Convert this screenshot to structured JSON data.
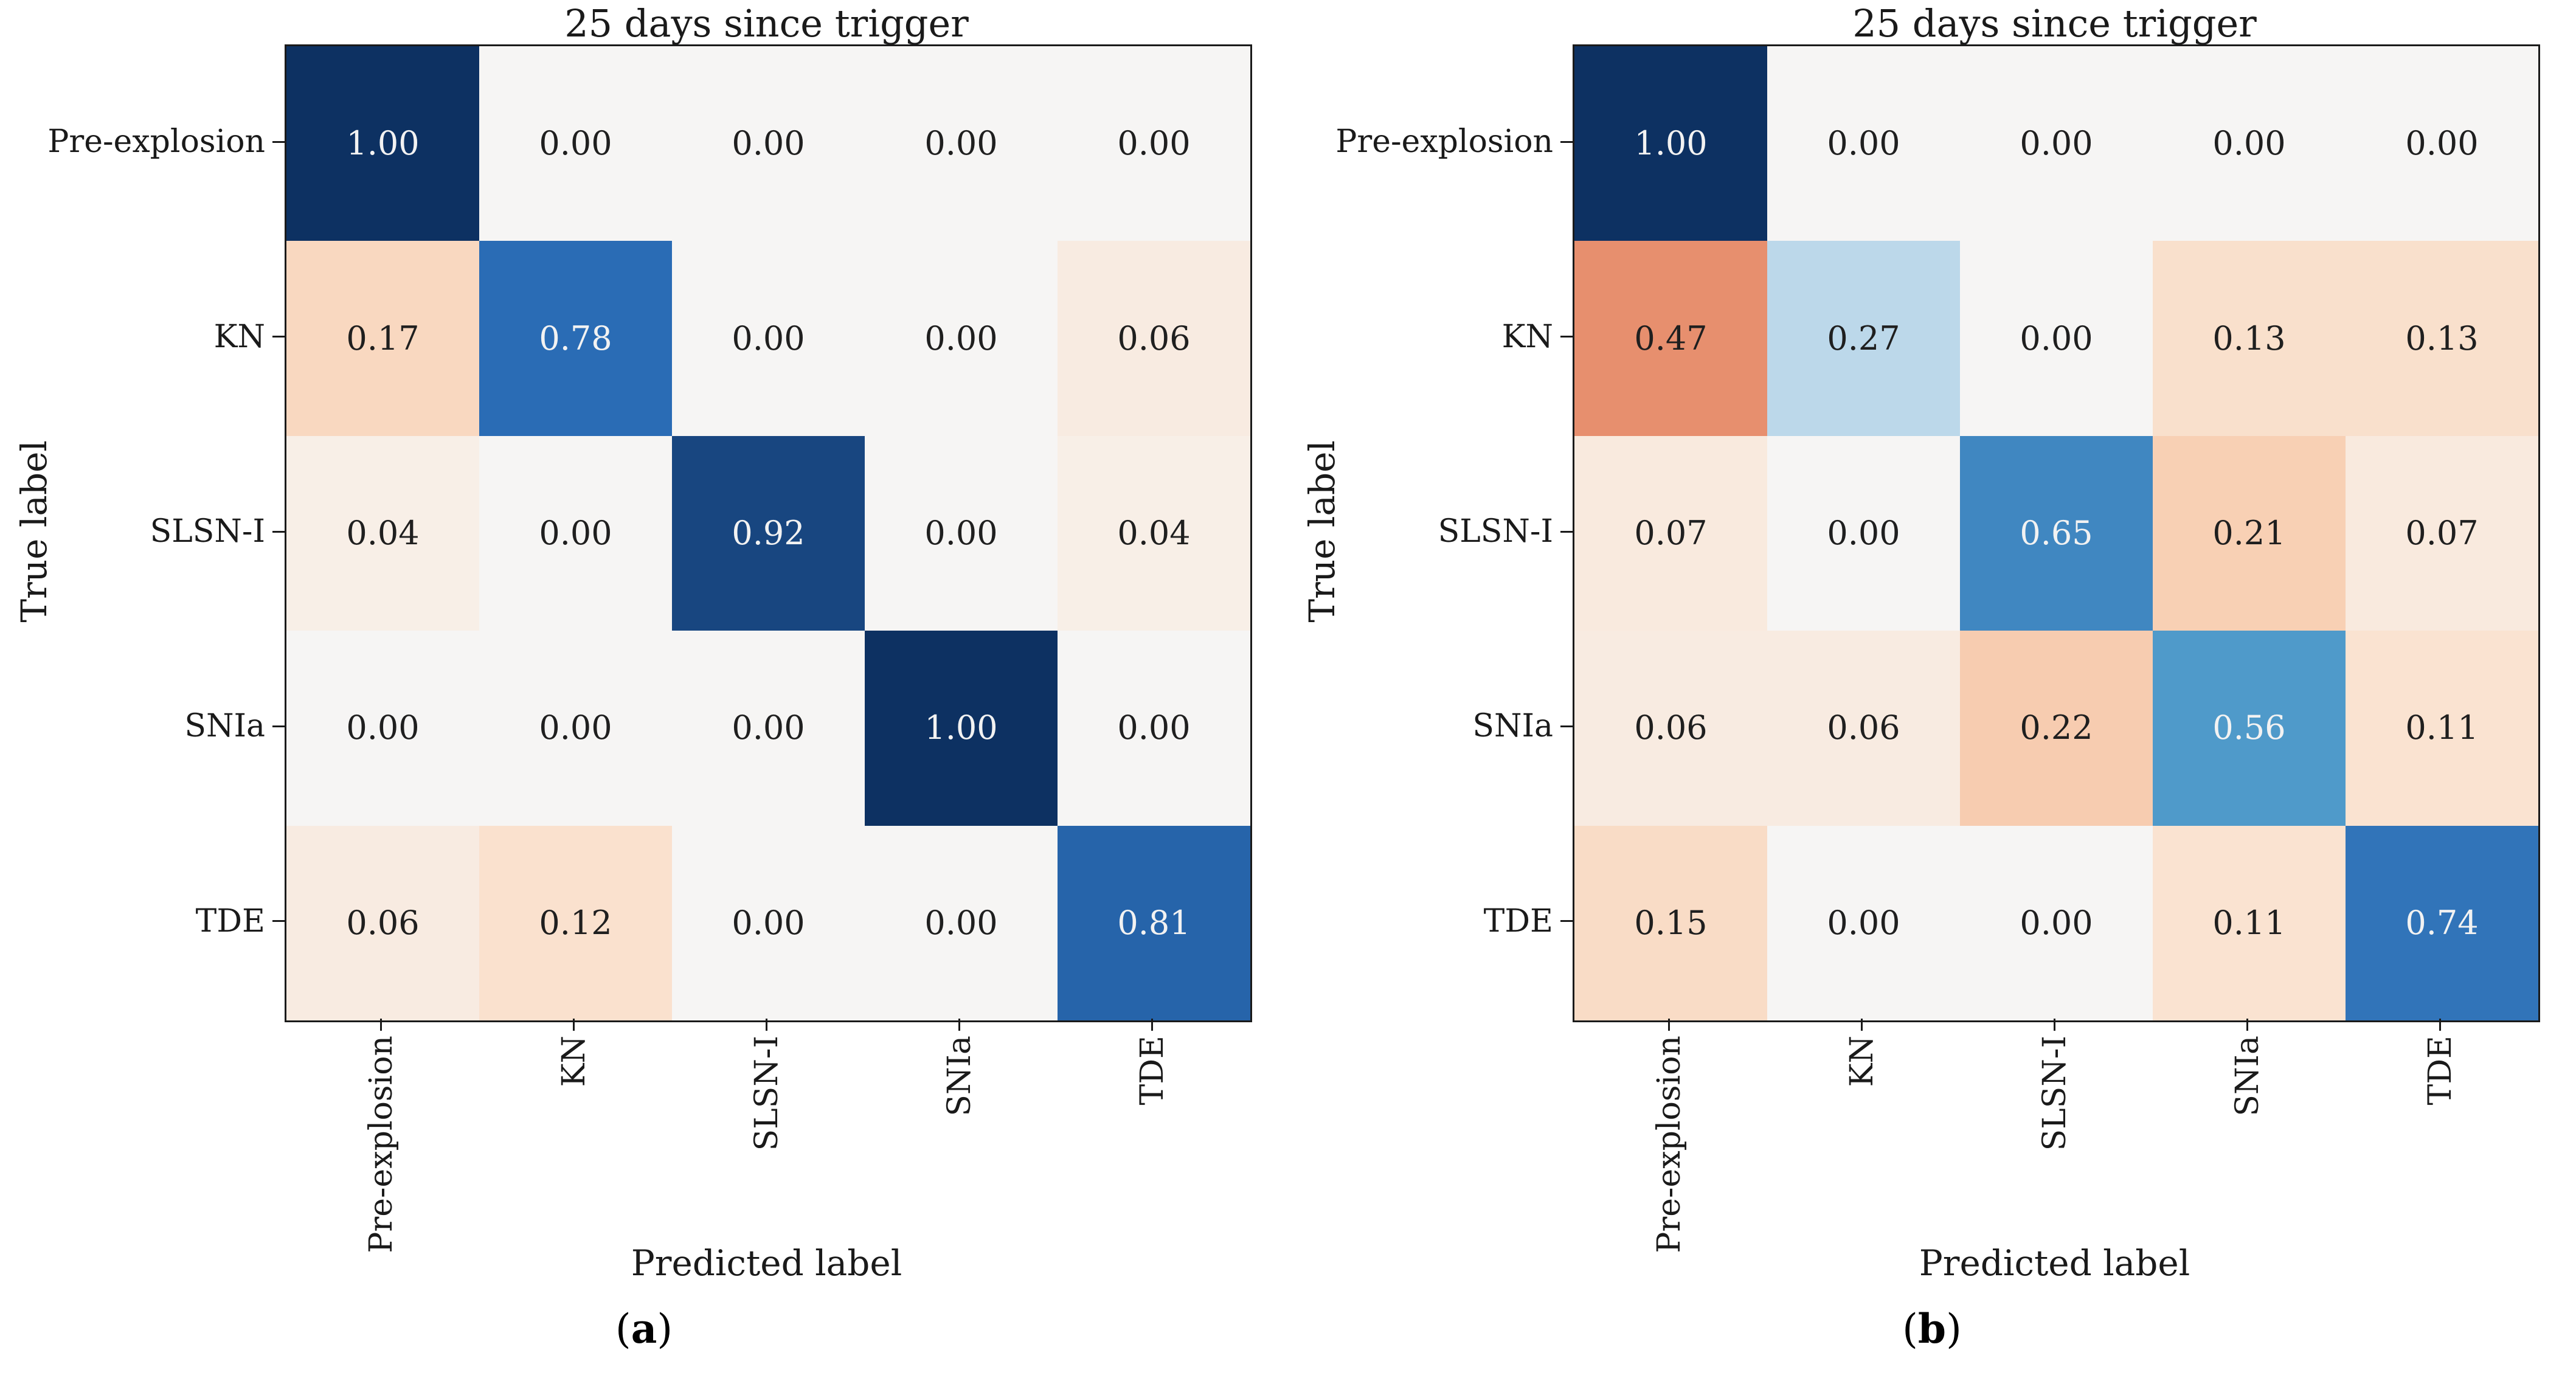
{
  "figure_title": "25 days since trigger",
  "style": {
    "axis_color": "#1a1a1a",
    "background": "#ffffff",
    "colormap": {
      "zero_color": "#f6f5f4",
      "diagonal_stops": [
        {
          "v": 0.0,
          "c": "#f6f5f4"
        },
        {
          "v": 0.27,
          "c": "#bcd8ea"
        },
        {
          "v": 0.56,
          "c": "#4f9aca"
        },
        {
          "v": 0.78,
          "c": "#2a6cb5"
        },
        {
          "v": 1.0,
          "c": "#0d3162"
        }
      ],
      "offdiagonal_stops": [
        {
          "v": 0.0,
          "c": "#f6f5f4"
        },
        {
          "v": 0.1,
          "c": "#fae5d4"
        },
        {
          "v": 0.2,
          "c": "#f8d3b8"
        },
        {
          "v": 0.3,
          "c": "#f4b290"
        },
        {
          "v": 0.5,
          "c": "#e58968"
        },
        {
          "v": 0.75,
          "c": "#ca503c"
        },
        {
          "v": 1.0,
          "c": "#67001f"
        }
      ],
      "light_text": "#f2f2f2",
      "dark_text": "#1f1f1f",
      "luminance_threshold": 0.6
    }
  },
  "chart_data": [
    {
      "type": "heatmap",
      "panel": "a",
      "caption_open": "(",
      "caption_letter": "a",
      "caption_close": ")",
      "title": "25 days since trigger",
      "xlabel": "Predicted label",
      "ylabel": "True label",
      "x_tick_labels": [
        "Pre-explosion",
        "KN",
        "SLSN-I",
        "SNIa",
        "TDE"
      ],
      "y_tick_labels": [
        "Pre-explosion",
        "KN",
        "SLSN-I",
        "SNIa",
        "TDE"
      ],
      "rows": [
        [
          1.0,
          0.0,
          0.0,
          0.0,
          0.0
        ],
        [
          0.17,
          0.78,
          0.0,
          0.0,
          0.06
        ],
        [
          0.04,
          0.0,
          0.92,
          0.0,
          0.04
        ],
        [
          0.0,
          0.0,
          0.0,
          1.0,
          0.0
        ],
        [
          0.06,
          0.12,
          0.0,
          0.0,
          0.81
        ]
      ]
    },
    {
      "type": "heatmap",
      "panel": "b",
      "caption_open": "(",
      "caption_letter": "b",
      "caption_close": ")",
      "title": "25 days since trigger",
      "xlabel": "Predicted label",
      "ylabel": "True label",
      "x_tick_labels": [
        "Pre-explosion",
        "KN",
        "SLSN-I",
        "SNIa",
        "TDE"
      ],
      "y_tick_labels": [
        "Pre-explosion",
        "KN",
        "SLSN-I",
        "SNIa",
        "TDE"
      ],
      "rows": [
        [
          1.0,
          0.0,
          0.0,
          0.0,
          0.0
        ],
        [
          0.47,
          0.27,
          0.0,
          0.13,
          0.13
        ],
        [
          0.07,
          0.0,
          0.65,
          0.21,
          0.07
        ],
        [
          0.06,
          0.06,
          0.22,
          0.56,
          0.11
        ],
        [
          0.15,
          0.0,
          0.0,
          0.11,
          0.74
        ]
      ]
    }
  ]
}
